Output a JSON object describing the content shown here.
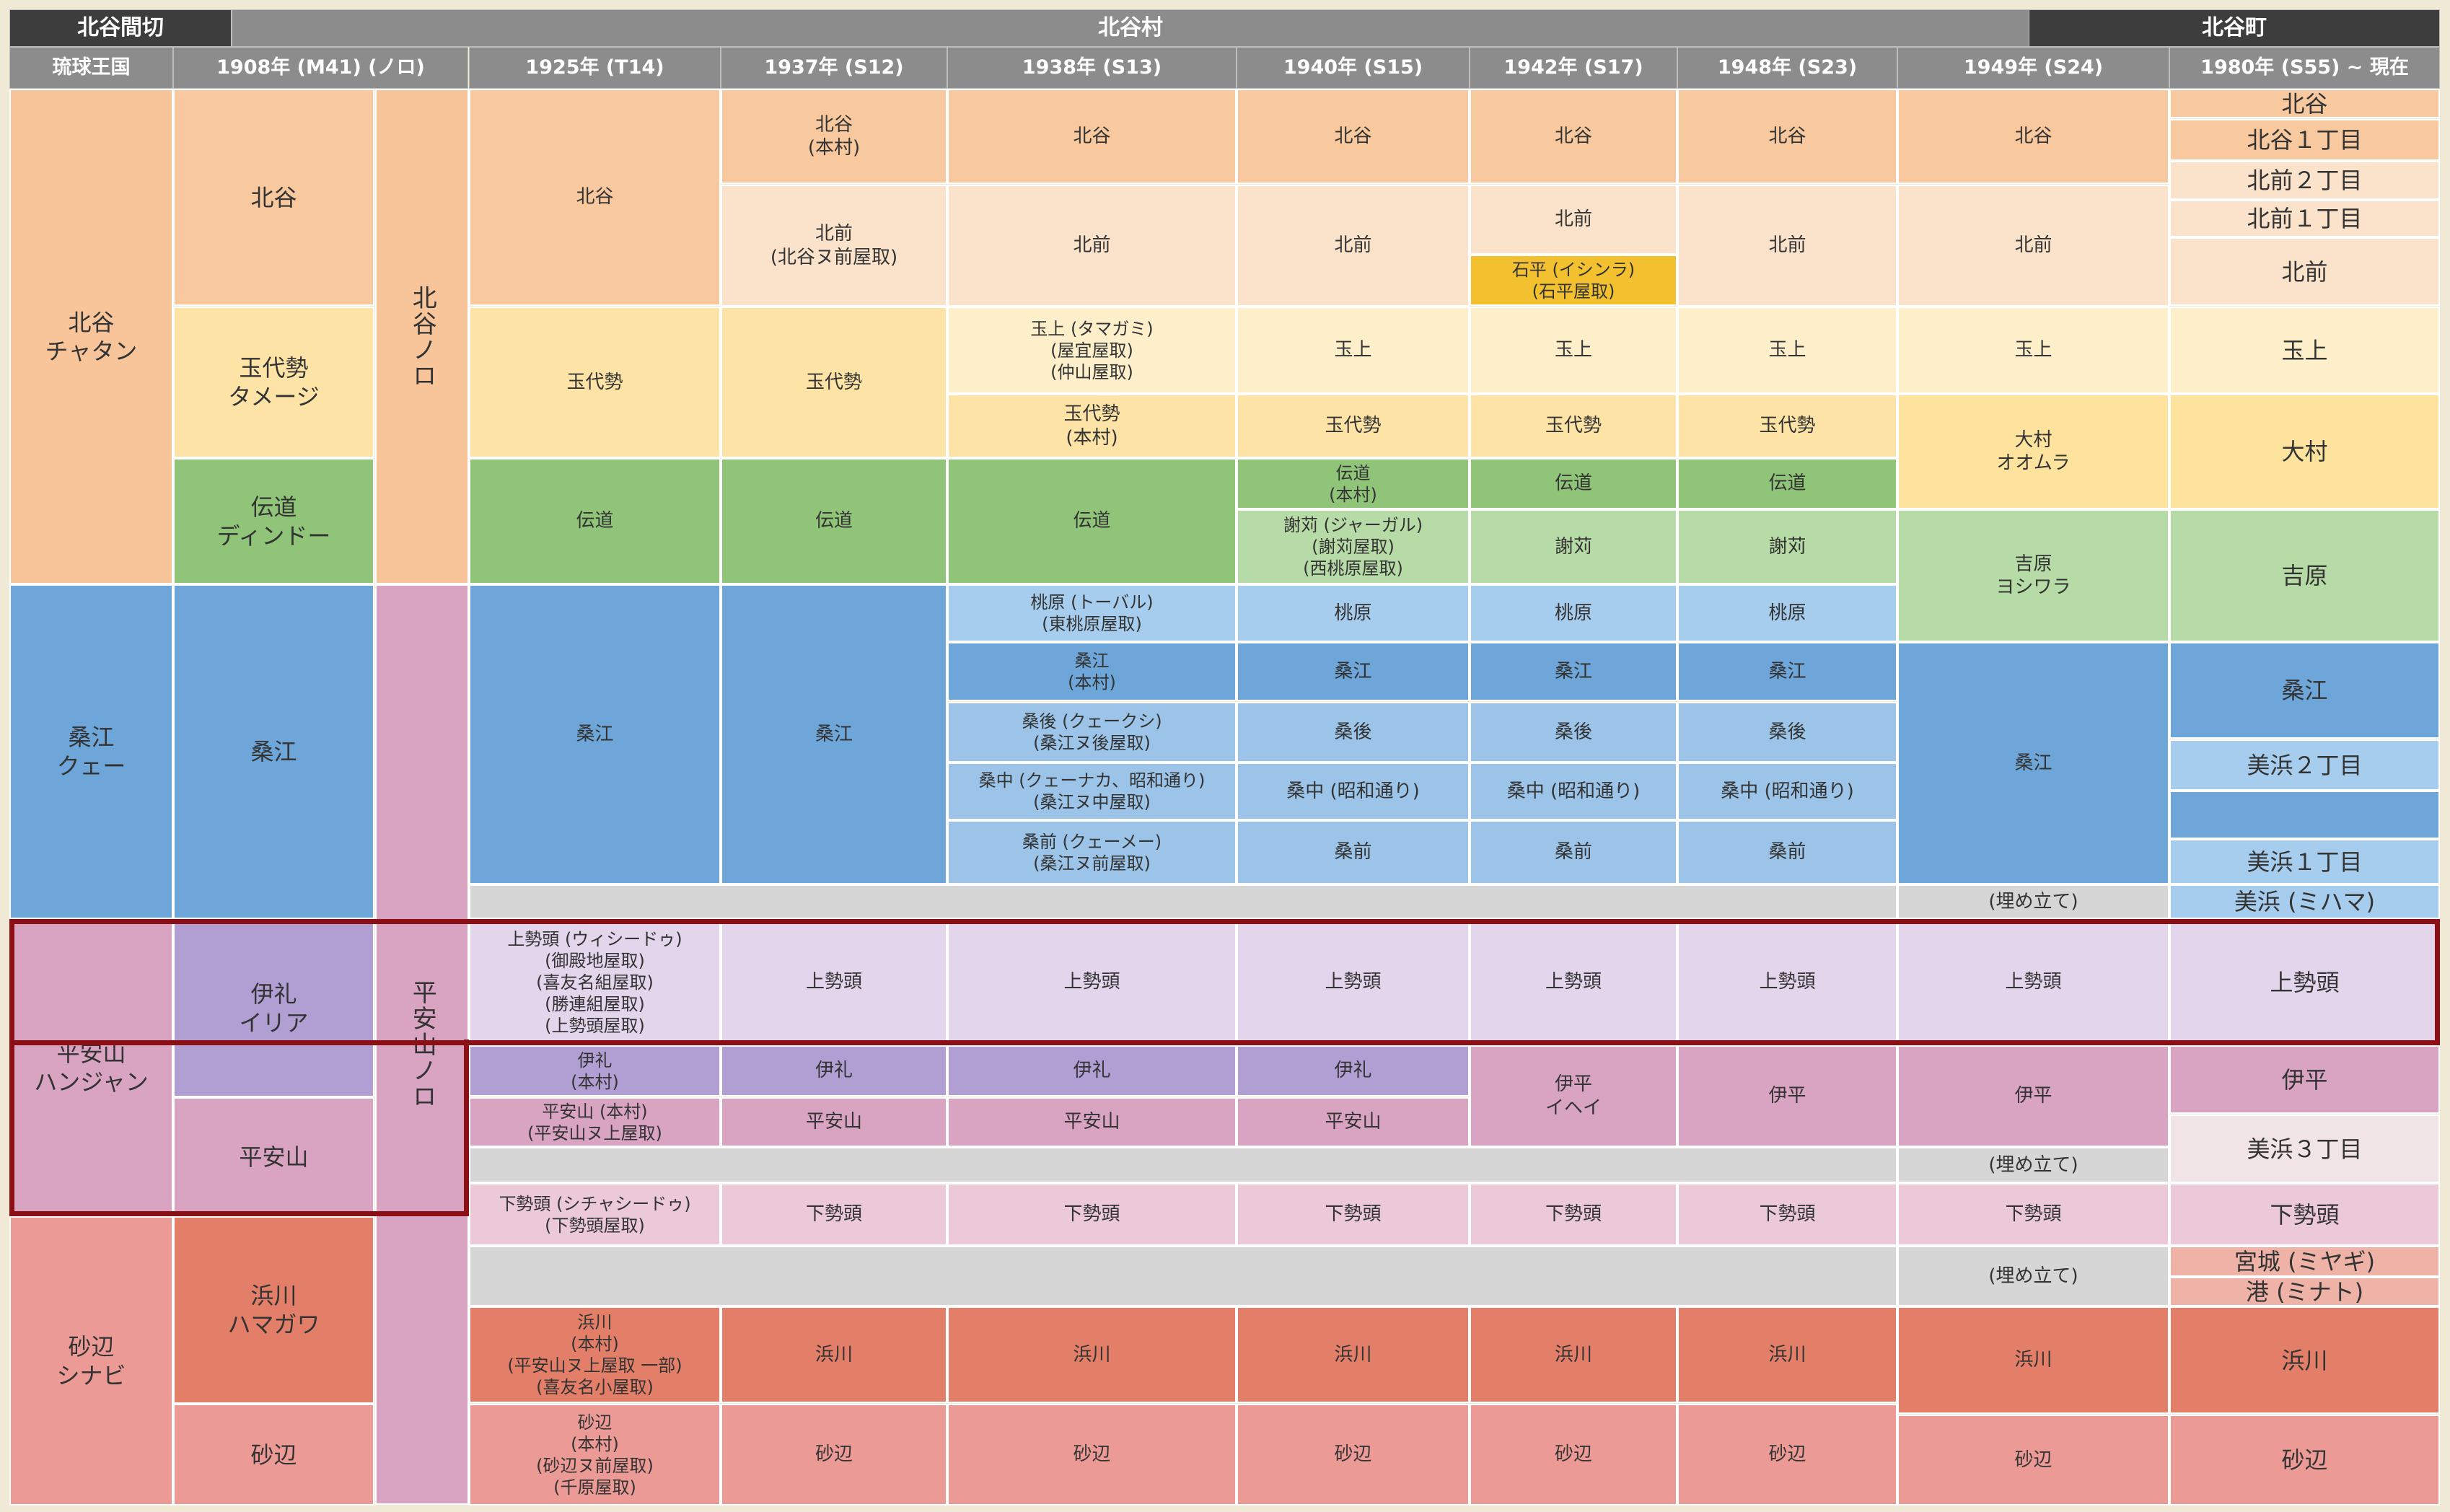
{
  "chart_data": {
    "type": "table",
    "colors": {
      "grey_header": "#8c8c8c",
      "dark_header": "#3d3d3d",
      "chatan_region": "#f8c59a",
      "kitadani": "#f8c99e",
      "kitamae": "#fbe3cb",
      "tamadai": "#fde4a6",
      "denmichi": "#8fc479",
      "tamagami": "#fdefca",
      "ishindira": "#f3c12f",
      "kuwae": "#6ea6da",
      "kuwae_light": "#a6ccee",
      "kuwae_mid": "#9bc4e8",
      "yoshiwara": "#b7dba6",
      "omura": "#fde39e",
      "hanjan": "#d9a3c2",
      "iri": "#b19fd4",
      "uesedo": "#e3d5ec",
      "shimosedo": "#ebc9d7",
      "landfill": "#d6d6d6",
      "hamakawa": "#e37f69",
      "shinabi": "#ec9a95",
      "minato": "#eeb3a6",
      "mihama3": "#f0e4e4",
      "highlight_border": "#8b0f14"
    },
    "top_headers": [
      "北谷間切",
      "北谷村",
      "北谷町"
    ],
    "column_headers": [
      "琉球王国",
      "1908年 (M41) (ノロ)",
      "1925年 (T14)",
      "1937年 (S12)",
      "1938年 (S13)",
      "1940年 (S15)",
      "1942年 (S17)",
      "1948年 (S23)",
      "1949年 (S24)",
      "1980年 (S55) ~ 現在"
    ],
    "noro": [
      "北谷ノロ",
      "平安山ノロ"
    ],
    "kingdom_regions": [
      "北谷\nチャタン",
      "桑江\nクェー",
      "平安山\nハンジャン",
      "砂辺\nシナビ"
    ],
    "villages_1908": [
      "北谷",
      "玉代勢\nタメージ",
      "伝道\nディンドー",
      "桑江",
      "伊礼\nイリア",
      "平安山",
      "浜川\nハマガワ",
      "砂辺"
    ],
    "col_1925": [
      "北谷",
      "玉代勢",
      "伝道",
      "桑江",
      "上勢頭 (ウィシードゥ)\n(御殿地屋取)\n(喜友名組屋取)\n(勝連組屋取)\n(上勢頭屋取)",
      "伊礼\n(本村)",
      "平安山 (本村)\n(平安山ヌ上屋取)",
      "下勢頭 (シチャシードゥ)\n(下勢頭屋取)",
      "浜川\n(本村)\n(平安山ヌ上屋取 一部)\n(喜友名小屋取)",
      "砂辺\n(本村)\n(砂辺ヌ前屋取)\n(千原屋取)"
    ],
    "col_1937": [
      "北谷\n(本村)",
      "北前\n(北谷ヌ前屋取)",
      "玉代勢",
      "伝道",
      "桑江",
      "上勢頭",
      "伊礼",
      "平安山",
      "下勢頭",
      "浜川",
      "砂辺"
    ],
    "col_1938": [
      "北谷",
      "北前",
      "玉上 (タマガミ)\n(屋宜屋取)\n(仲山屋取)",
      "玉代勢\n(本村)",
      "伝道",
      "桃原 (トーバル)\n(東桃原屋取)",
      "桑江\n(本村)",
      "桑後 (クェークシ)\n(桑江ヌ後屋取)",
      "桑中 (クェーナカ、昭和通り)\n(桑江ヌ中屋取)",
      "桑前 (クェーメー)\n(桑江ヌ前屋取)",
      "上勢頭",
      "伊礼",
      "平安山",
      "下勢頭",
      "浜川",
      "砂辺"
    ],
    "col_1940": [
      "北谷",
      "北前",
      "玉上",
      "玉代勢",
      "伝道\n(本村)",
      "謝苅 (ジャーガル)\n(謝苅屋取)\n(西桃原屋取)",
      "桃原",
      "桑江",
      "桑後",
      "桑中 (昭和通り)",
      "桑前",
      "上勢頭",
      "伊礼",
      "平安山",
      "下勢頭",
      "浜川",
      "砂辺"
    ],
    "col_1942": [
      "北谷",
      "北前",
      "石平 (イシンラ)\n(石平屋取)",
      "玉上",
      "玉代勢",
      "伝道",
      "謝苅",
      "桃原",
      "桑江",
      "桑後",
      "桑中 (昭和通り)",
      "桑前",
      "上勢頭",
      "伊平\nイヘイ",
      "下勢頭",
      "浜川",
      "砂辺"
    ],
    "col_1948": [
      "北谷",
      "北前",
      "玉上",
      "玉代勢",
      "伝道",
      "謝苅",
      "桃原",
      "桑江",
      "桑後",
      "桑中 (昭和通り)",
      "桑前",
      "上勢頭",
      "伊平",
      "下勢頭",
      "浜川",
      "砂辺"
    ],
    "col_1949": [
      "北谷",
      "北前",
      "玉上",
      "大村\nオオムラ",
      "吉原\nヨシワラ",
      "桑江",
      "(埋め立て)",
      "上勢頭",
      "伊平",
      "(埋め立て)",
      "下勢頭",
      "(埋め立て)",
      "浜川",
      "砂辺"
    ],
    "col_1980": [
      "北谷",
      "北谷１丁目",
      "北前２丁目",
      "北前１丁目",
      "北前",
      "玉上",
      "大村",
      "吉原",
      "桑江",
      "美浜２丁目",
      "美浜１丁目",
      "美浜 (ミハマ)",
      "上勢頭",
      "伊平",
      "美浜３丁目",
      "下勢頭",
      "宮城 (ミヤギ)",
      "港 (ミナト)",
      "浜川",
      "砂辺"
    ],
    "highlighted_rows": [
      "上勢頭",
      "伊礼",
      "平安山"
    ]
  }
}
